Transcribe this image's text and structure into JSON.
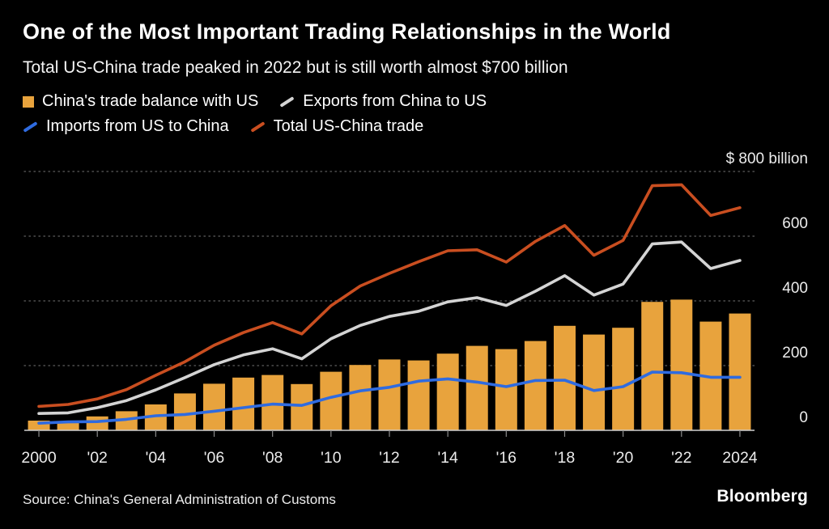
{
  "header": {
    "title": "One of the Most Important Trading Relationships in the World",
    "subtitle": "Total US-China trade peaked in 2022 but is still worth almost $700 billion"
  },
  "footer": {
    "source": "Source: China's General Administration of Customs",
    "brand": "Bloomberg"
  },
  "colors": {
    "background": "#000000",
    "grid": "#4F4F4F",
    "baseline": "#CFCFCF",
    "axis_text": "#ECECEC",
    "tick": "#8B8B8B"
  },
  "chart_data": {
    "type": "bar",
    "combo": "bar + line",
    "title": "One of the Most Important Trading Relationships in the World",
    "subtitle": "Total US-China trade peaked in 2022 but is still worth almost $700 billion",
    "unit_axis_label": "$ 800 billion",
    "ylim": [
      0,
      800
    ],
    "grid": "dotted horizontal",
    "legend_position": "top-left",
    "years": [
      2000,
      2001,
      2002,
      2003,
      2004,
      2005,
      2006,
      2007,
      2008,
      2009,
      2010,
      2011,
      2012,
      2013,
      2014,
      2015,
      2016,
      2017,
      2018,
      2019,
      2020,
      2021,
      2022,
      2023,
      2024
    ],
    "x_ticks": [
      {
        "i": 0,
        "label": "2000"
      },
      {
        "i": 2,
        "label": "'02"
      },
      {
        "i": 4,
        "label": "'04"
      },
      {
        "i": 6,
        "label": "'06"
      },
      {
        "i": 8,
        "label": "'08"
      },
      {
        "i": 10,
        "label": "'10"
      },
      {
        "i": 12,
        "label": "'12"
      },
      {
        "i": 14,
        "label": "'14"
      },
      {
        "i": 16,
        "label": "'16"
      },
      {
        "i": 18,
        "label": "'18"
      },
      {
        "i": 20,
        "label": "'20"
      },
      {
        "i": 22,
        "label": "'22"
      },
      {
        "i": 24,
        "label": "2024"
      }
    ],
    "y_ticks": [
      {
        "v": 0,
        "label": "0"
      },
      {
        "v": 200,
        "label": "200"
      },
      {
        "v": 400,
        "label": "400"
      },
      {
        "v": 600,
        "label": "600"
      },
      {
        "v": 800,
        "label": "$ 800 billion"
      }
    ],
    "series": [
      {
        "name": "China's trade balance with US",
        "type": "bar",
        "color": "#E8A33D",
        "values": [
          30,
          28,
          43,
          59,
          80,
          114,
          144,
          163,
          171,
          143,
          181,
          202,
          219,
          216,
          237,
          261,
          251,
          276,
          323,
          296,
          317,
          397,
          404,
          336,
          361
        ]
      },
      {
        "name": "Exports from China to US",
        "type": "line",
        "color": "#D4D4D4",
        "values": [
          52,
          54,
          70,
          92,
          125,
          163,
          203,
          233,
          252,
          221,
          283,
          324,
          352,
          368,
          397,
          410,
          386,
          430,
          478,
          418,
          452,
          576,
          582,
          500,
          525
        ]
      },
      {
        "name": "Imports from US to China",
        "type": "line",
        "color": "#2F6BE0",
        "values": [
          22,
          26,
          27,
          34,
          45,
          49,
          59,
          70,
          81,
          77,
          102,
          122,
          133,
          152,
          159,
          149,
          135,
          154,
          155,
          123,
          135,
          180,
          178,
          164,
          164
        ]
      },
      {
        "name": "Total US-China trade",
        "type": "line",
        "color": "#C94E20",
        "values": [
          74,
          80,
          97,
          126,
          170,
          212,
          263,
          302,
          333,
          298,
          385,
          446,
          485,
          521,
          555,
          558,
          520,
          584,
          633,
          541,
          587,
          756,
          759,
          664,
          688
        ]
      }
    ]
  }
}
